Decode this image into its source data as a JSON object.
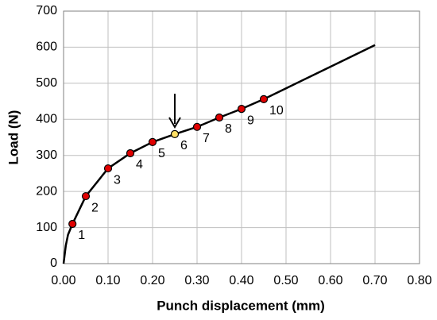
{
  "chart_data": {
    "type": "line",
    "xlabel": "Punch displacement (mm)",
    "ylabel": "Load (N)",
    "xlim": [
      0,
      0.8
    ],
    "ylim": [
      0,
      700
    ],
    "xticks": [
      {
        "value": 0,
        "label": "0.00"
      },
      {
        "value": 0.1,
        "label": "0.10"
      },
      {
        "value": 0.2,
        "label": "0.20"
      },
      {
        "value": 0.3,
        "label": "0.30"
      },
      {
        "value": 0.4,
        "label": "0.40"
      },
      {
        "value": 0.5,
        "label": "0.50"
      },
      {
        "value": 0.6,
        "label": "0.60"
      },
      {
        "value": 0.7,
        "label": "0.70"
      },
      {
        "value": 0.8,
        "label": "0.80"
      }
    ],
    "yticks": [
      0,
      100,
      200,
      300,
      400,
      500,
      600,
      700
    ],
    "grid": true,
    "series": [
      {
        "color": "#000000",
        "x": [
          0,
          0.005,
          0.01,
          0.02,
          0.05,
          0.1,
          0.15,
          0.2,
          0.25,
          0.3,
          0.35,
          0.4,
          0.45,
          0.5,
          0.6,
          0.7
        ],
        "values": [
          0,
          50,
          80,
          110,
          187,
          264,
          306,
          337,
          359,
          379,
          405,
          429,
          456,
          486,
          546,
          606
        ]
      },
      {
        "colors": [
          "#e00000",
          "#e00000",
          "#e00000",
          "#e00000",
          "#e00000",
          "#ffe066",
          "#e00000",
          "#e00000",
          "#e00000",
          "#e00000"
        ],
        "point_labels": [
          "1",
          "2",
          "3",
          "4",
          "5",
          "6",
          "7",
          "8",
          "9",
          "10"
        ],
        "x": [
          0.02,
          0.05,
          0.1,
          0.15,
          0.2,
          0.25,
          0.3,
          0.35,
          0.4,
          0.45
        ],
        "values": [
          110,
          187,
          264,
          306,
          337,
          359,
          379,
          405,
          429,
          456
        ]
      }
    ]
  }
}
